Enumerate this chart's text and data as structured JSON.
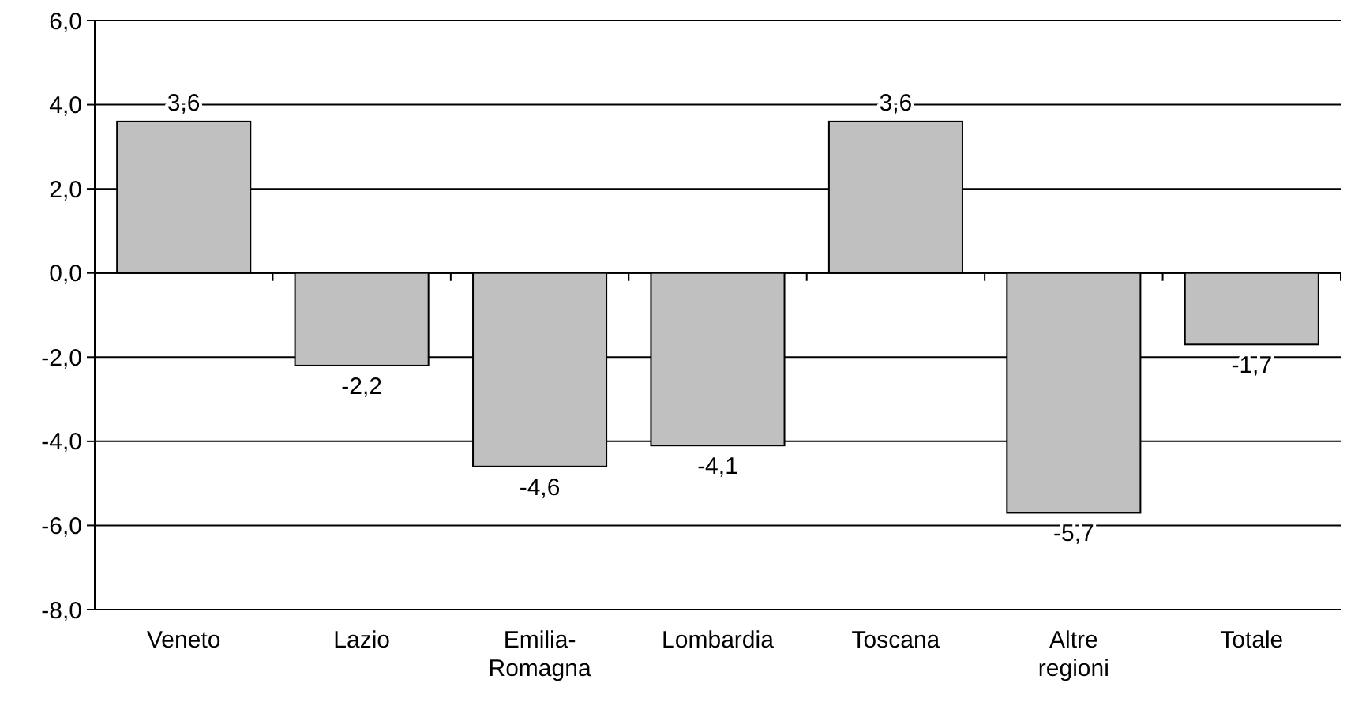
{
  "chart_data": {
    "type": "bar",
    "categories": [
      "Veneto",
      "Lazio",
      "Emilia-Romagna",
      "Lombardia",
      "Toscana",
      "Altre regioni",
      "Totale"
    ],
    "values": [
      3.6,
      -2.2,
      -4.6,
      -4.1,
      3.6,
      -5.7,
      -1.7
    ],
    "value_labels": [
      "3,6",
      "-2,2",
      "-4,6",
      "-4,1",
      "3,6",
      "-5,7",
      "-1,7"
    ],
    "color": "#c0c0c0",
    "ylim": [
      -8,
      6
    ],
    "yticks": [
      {
        "value": -8,
        "label": "-8,0"
      },
      {
        "value": -6,
        "label": "-6,0"
      },
      {
        "value": -4,
        "label": "-4,0"
      },
      {
        "value": -2,
        "label": "-2,0"
      },
      {
        "value": 0,
        "label": "0,0"
      },
      {
        "value": 2,
        "label": "2,0"
      },
      {
        "value": 4,
        "label": "4,0"
      },
      {
        "value": 6,
        "label": "6,0"
      }
    ],
    "grid": "y"
  }
}
